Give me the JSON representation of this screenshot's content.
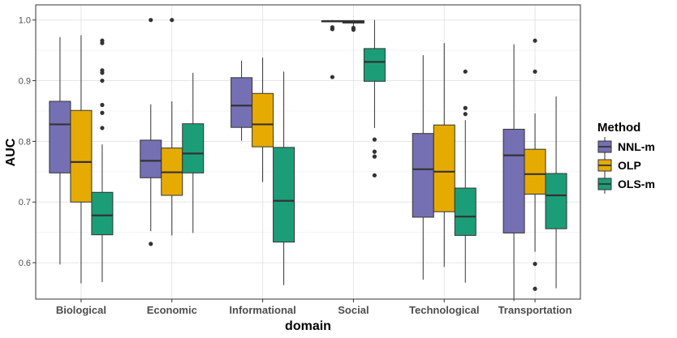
{
  "chart_data": {
    "type": "boxplot",
    "title": "",
    "xlabel": "domain",
    "ylabel": "AUC",
    "ylim": [
      0.54,
      1.025
    ],
    "yticks": [
      0.6,
      0.7,
      0.8,
      0.9,
      1.0
    ],
    "ytick_labels": [
      "0.6",
      "0.7",
      "0.8",
      "0.9",
      "1.0"
    ],
    "grid": true,
    "legend": {
      "title": "Method",
      "position": "right"
    },
    "categories": [
      "Biological",
      "Economic",
      "Informational",
      "Social",
      "Technological",
      "Transportation"
    ],
    "series": [
      {
        "name": "NNL-m",
        "color": "#7570b3",
        "boxes": [
          {
            "min": 0.597,
            "q1": 0.748,
            "median": 0.828,
            "q3": 0.866,
            "max": 0.972,
            "outliers": []
          },
          {
            "min": 0.652,
            "q1": 0.74,
            "median": 0.768,
            "q3": 0.802,
            "max": 0.861,
            "outliers": [
              0.631,
              1.0
            ]
          },
          {
            "min": 0.801,
            "q1": 0.823,
            "median": 0.859,
            "q3": 0.905,
            "max": 0.933,
            "outliers": []
          },
          {
            "min": 0.997,
            "q1": 0.997,
            "median": 0.998,
            "q3": 0.999,
            "max": 1.0,
            "outliers": [
              0.988,
              0.985,
              0.906
            ]
          },
          {
            "min": 0.572,
            "q1": 0.675,
            "median": 0.754,
            "q3": 0.813,
            "max": 0.942,
            "outliers": []
          },
          {
            "min": 0.537,
            "q1": 0.649,
            "median": 0.777,
            "q3": 0.82,
            "max": 0.96,
            "outliers": []
          }
        ]
      },
      {
        "name": "OLP",
        "color": "#e6ab02",
        "boxes": [
          {
            "min": 0.566,
            "q1": 0.7,
            "median": 0.766,
            "q3": 0.851,
            "max": 0.975,
            "outliers": []
          },
          {
            "min": 0.645,
            "q1": 0.711,
            "median": 0.749,
            "q3": 0.789,
            "max": 0.866,
            "outliers": [
              1.0
            ]
          },
          {
            "min": 0.733,
            "q1": 0.791,
            "median": 0.828,
            "q3": 0.879,
            "max": 0.938,
            "outliers": []
          },
          {
            "min": 0.99,
            "q1": 0.995,
            "median": 0.997,
            "q3": 0.999,
            "max": 1.0,
            "outliers": [
              0.987,
              0.984
            ]
          },
          {
            "min": 0.593,
            "q1": 0.684,
            "median": 0.75,
            "q3": 0.827,
            "max": 0.962,
            "outliers": []
          },
          {
            "min": 0.618,
            "q1": 0.713,
            "median": 0.746,
            "q3": 0.787,
            "max": 0.846,
            "outliers": [
              0.966,
              0.915,
              0.598,
              0.557
            ]
          }
        ]
      },
      {
        "name": "OLS-m",
        "color": "#1b9e77",
        "boxes": [
          {
            "min": 0.568,
            "q1": 0.646,
            "median": 0.678,
            "q3": 0.716,
            "max": 0.795,
            "outliers": [
              0.966,
              0.962,
              0.917,
              0.913,
              0.9,
              0.86,
              0.847,
              0.822
            ]
          },
          {
            "min": 0.649,
            "q1": 0.748,
            "median": 0.78,
            "q3": 0.829,
            "max": 0.913,
            "outliers": []
          },
          {
            "min": 0.563,
            "q1": 0.634,
            "median": 0.702,
            "q3": 0.79,
            "max": 0.915,
            "outliers": []
          },
          {
            "min": 0.822,
            "q1": 0.899,
            "median": 0.931,
            "q3": 0.953,
            "max": 1.0,
            "outliers": [
              0.803,
              0.783,
              0.775,
              0.744
            ]
          },
          {
            "min": 0.567,
            "q1": 0.645,
            "median": 0.676,
            "q3": 0.723,
            "max": 0.835,
            "outliers": [
              0.915,
              0.855,
              0.845
            ]
          },
          {
            "min": 0.558,
            "q1": 0.656,
            "median": 0.711,
            "q3": 0.747,
            "max": 0.874,
            "outliers": []
          }
        ]
      }
    ]
  }
}
